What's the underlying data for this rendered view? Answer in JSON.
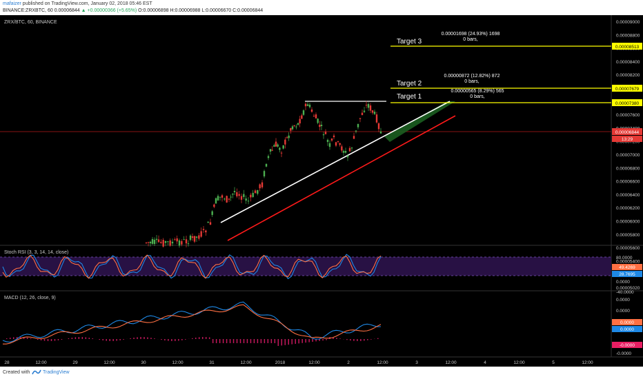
{
  "header": {
    "author": "mafaizer",
    "published_text": "published on TradingView.com, January 02, 2018 05:46 EST",
    "symbol": "BINANCE:ZRXBTC, 60",
    "last": "0.00006844",
    "change": "+0.00000366 (+5.65%)",
    "open": "O:0.00006898",
    "high": "H:0.00006988",
    "low": "L:0.00006670",
    "close": "C:0.00006844"
  },
  "chart": {
    "legend": "ZRX/BTC, 60, BINANCE",
    "price_labels": [
      "0.00009000",
      "0.00008800",
      "0.00008600",
      "0.00008400",
      "0.00008200",
      "0.00008000",
      "0.00007800",
      "0.00007600",
      "0.00007400",
      "0.00007200",
      "0.00007000",
      "0.00006800",
      "0.00006600",
      "0.00006400",
      "0.00006200",
      "0.00006000",
      "0.00005800",
      "0.00005600",
      "0.00005400",
      "0.00005200",
      "0.00005020"
    ],
    "target3_price": "0.00008513",
    "target2_price": "0.00007679",
    "target1_price": "0.00007380",
    "current_price": "0.00006844",
    "countdown": "13:29",
    "targets": [
      {
        "label": "Target 3",
        "line1": "0.00001698 (24.93%) 1698",
        "line2": "0 bars,"
      },
      {
        "label": "Target 2",
        "line1": "0.00000872 (12.82%) 872",
        "line2": "0 bars,"
      },
      {
        "label": "Target 1",
        "line1": "0.00000565 (8.29%) 565",
        "line2": "0 bars,"
      }
    ],
    "colors": {
      "bull": "#4caf50",
      "bear": "#e53935",
      "target": "#ffff00",
      "support": "#ff1a1a",
      "trend": "#ffffff",
      "channel": "#1b5e20"
    }
  },
  "stoch": {
    "title": "Stoch RSI (3, 3, 14, 14, close)",
    "labels": [
      "80.0000",
      "49.4269",
      "28.7695",
      "0.0000",
      "-40.0000"
    ]
  },
  "macd": {
    "title": "MACD (12, 26, close, 9)",
    "labels": [
      "0.0000",
      "0.0000",
      "0.0000",
      "0.0000",
      "-0.0000",
      "-0.0000"
    ]
  },
  "time_axis": [
    "28",
    "12:00",
    "29",
    "12:00",
    "30",
    "12:00",
    "31",
    "12:00",
    "2018",
    "12:00",
    "2",
    "12:00",
    "3",
    "12:00",
    "4",
    "12:00",
    "5",
    "12:00"
  ],
  "footer": {
    "created": "Created with",
    "brand": "TradingView"
  }
}
